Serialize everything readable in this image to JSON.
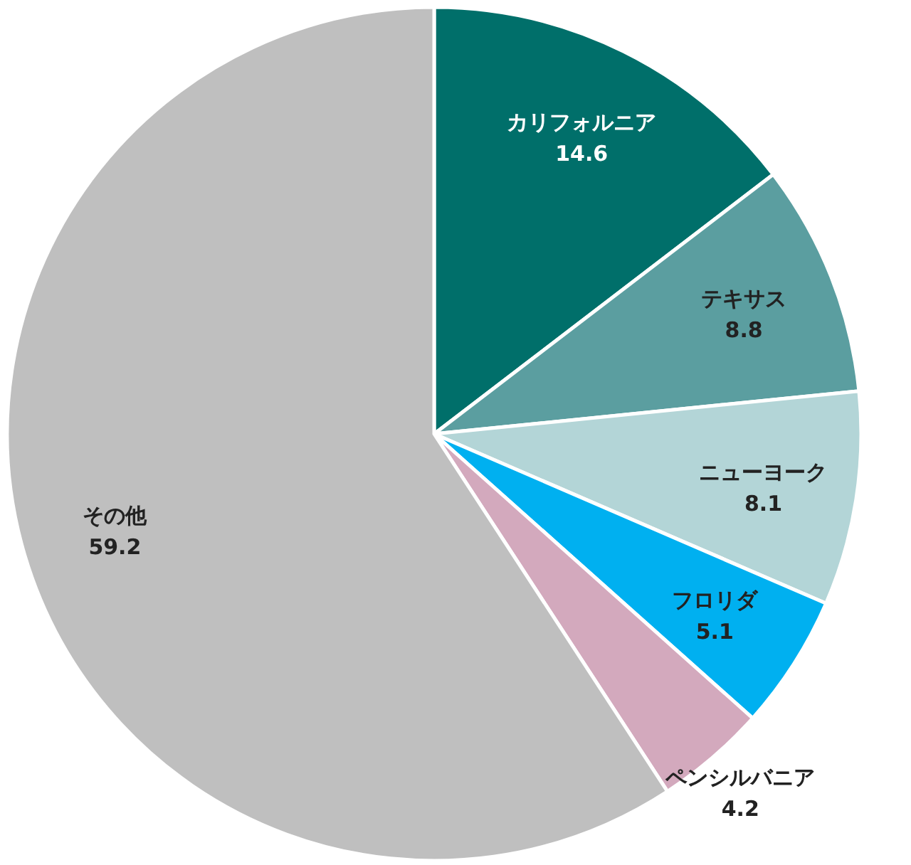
{
  "chart_data": {
    "type": "pie",
    "categories": [
      "カリフォルニア",
      "テキサス",
      "ニューヨーク",
      "フロリダ",
      "ペンシルバニア",
      "その他"
    ],
    "values": [
      14.6,
      8.8,
      8.1,
      5.1,
      4.2,
      59.2
    ],
    "colors": [
      "#006f6a",
      "#5b9ea0",
      "#b3d5d7",
      "#00b0f0",
      "#d3a9bd",
      "#bfbfbf"
    ],
    "data_labels": true
  }
}
